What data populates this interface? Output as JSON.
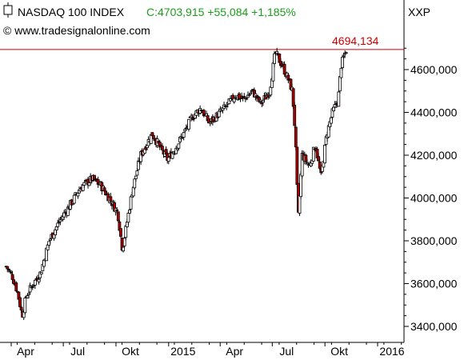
{
  "header": {
    "symbol": "NASDAQ 100 INDEX",
    "quote": "C:4703,915 +55,084 +1,185%",
    "source": "© www.tradesignalonline.com",
    "ticker": "XXP"
  },
  "colors": {
    "quote": "#1a9e1a",
    "marker": "#cc0000",
    "down_body": "#b00000",
    "up_body": "#ffffff",
    "axis": "#000000"
  },
  "chart_data": {
    "type": "candlestick",
    "title": "NASDAQ 100 INDEX",
    "subtitle": "C:4703,915 +55,084 +1,185%",
    "ylim": [
      3350,
      4800
    ],
    "y_ticks": [
      3400,
      3600,
      3800,
      4000,
      4200,
      4400,
      4600
    ],
    "y_tick_labels": [
      "3400,000",
      "3600,000",
      "3800,000",
      "4000,000",
      "4200,000",
      "4400,000",
      "4600,000"
    ],
    "x_ticks": [
      {
        "label": "Apr",
        "day": 0
      },
      {
        "label": "Jul",
        "day": 91
      },
      {
        "label": "Okt",
        "day": 183
      },
      {
        "label": "2015",
        "day": 275
      },
      {
        "label": "Apr",
        "day": 365
      },
      {
        "label": "Jul",
        "day": 456
      },
      {
        "label": "Okt",
        "day": 548
      },
      {
        "label": "2016",
        "day": 640
      }
    ],
    "x_range": [
      -20,
      690
    ],
    "marker_line": {
      "value": 4694.134,
      "label": "4694,134"
    },
    "grid": false,
    "close_path": [
      [
        -20,
        3680
      ],
      [
        -10,
        3640
      ],
      [
        0,
        3560
      ],
      [
        8,
        3450
      ],
      [
        15,
        3540
      ],
      [
        25,
        3590
      ],
      [
        40,
        3650
      ],
      [
        55,
        3800
      ],
      [
        75,
        3900
      ],
      [
        90,
        3960
      ],
      [
        110,
        4050
      ],
      [
        130,
        4090
      ],
      [
        145,
        4060
      ],
      [
        160,
        4000
      ],
      [
        175,
        3930
      ],
      [
        183,
        3760
      ],
      [
        190,
        3870
      ],
      [
        200,
        4030
      ],
      [
        215,
        4200
      ],
      [
        235,
        4300
      ],
      [
        250,
        4230
      ],
      [
        262,
        4180
      ],
      [
        275,
        4230
      ],
      [
        290,
        4300
      ],
      [
        305,
        4380
      ],
      [
        320,
        4420
      ],
      [
        335,
        4350
      ],
      [
        350,
        4390
      ],
      [
        365,
        4430
      ],
      [
        380,
        4480
      ],
      [
        395,
        4460
      ],
      [
        410,
        4500
      ],
      [
        425,
        4440
      ],
      [
        440,
        4500
      ],
      [
        450,
        4680
      ],
      [
        462,
        4620
      ],
      [
        472,
        4560
      ],
      [
        480,
        4500
      ],
      [
        485,
        4300
      ],
      [
        490,
        3900
      ],
      [
        497,
        4200
      ],
      [
        510,
        4150
      ],
      [
        520,
        4250
      ],
      [
        530,
        4100
      ],
      [
        540,
        4300
      ],
      [
        550,
        4400
      ],
      [
        560,
        4460
      ],
      [
        565,
        4620
      ],
      [
        575,
        4700
      ]
    ]
  }
}
